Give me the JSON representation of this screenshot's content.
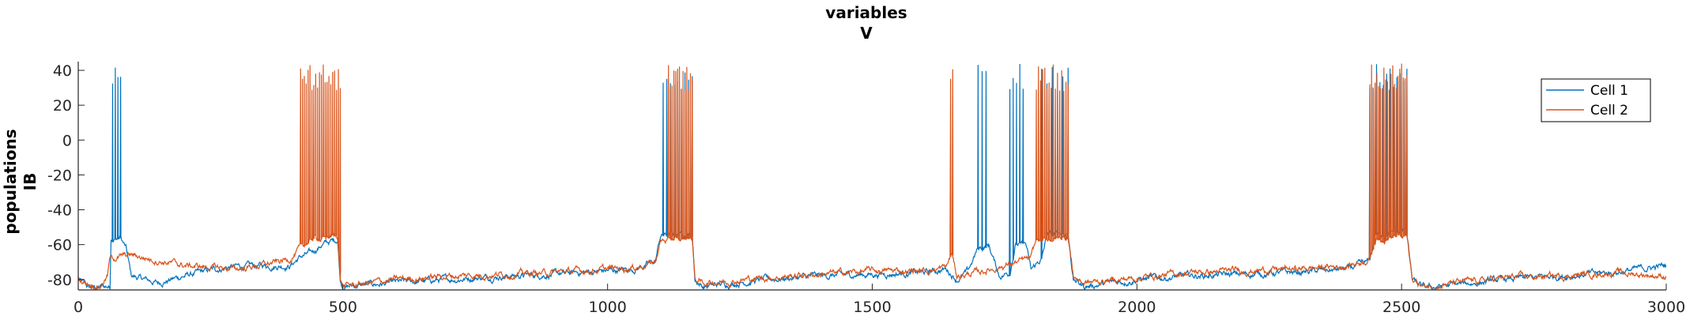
{
  "chart_data": {
    "type": "line",
    "title_line1": "variables",
    "title_line2": "V",
    "ylabel_line1": "populations",
    "ylabel_line2": "IB",
    "xlim": [
      0,
      3000
    ],
    "ylim": [
      -86,
      45
    ],
    "x_ticks": [
      0,
      500,
      1000,
      1500,
      2000,
      2500,
      3000
    ],
    "y_ticks": [
      -80,
      -60,
      -40,
      -20,
      0,
      20,
      40
    ],
    "legend_position": "top-right",
    "grid": false,
    "series": [
      {
        "name": "Cell 1",
        "color": "#0072BD",
        "baseline": [
          [
            0,
            -80
          ],
          [
            20,
            -85
          ],
          [
            60,
            -84
          ],
          [
            62,
            -56
          ],
          [
            80,
            -56
          ],
          [
            90,
            -62
          ],
          [
            100,
            -78
          ],
          [
            150,
            -82
          ],
          [
            200,
            -78
          ],
          [
            280,
            -73
          ],
          [
            350,
            -72
          ],
          [
            400,
            -72
          ],
          [
            420,
            -67
          ],
          [
            440,
            -65
          ],
          [
            460,
            -60
          ],
          [
            490,
            -57
          ],
          [
            495,
            -80
          ],
          [
            500,
            -84
          ],
          [
            600,
            -82
          ],
          [
            700,
            -80
          ],
          [
            800,
            -78
          ],
          [
            900,
            -77
          ],
          [
            1000,
            -75
          ],
          [
            1050,
            -74
          ],
          [
            1090,
            -70
          ],
          [
            1100,
            -55
          ],
          [
            1160,
            -54
          ],
          [
            1165,
            -80
          ],
          [
            1180,
            -84
          ],
          [
            1300,
            -80
          ],
          [
            1400,
            -78
          ],
          [
            1500,
            -77
          ],
          [
            1600,
            -76
          ],
          [
            1640,
            -74
          ],
          [
            1660,
            -80
          ],
          [
            1680,
            -76
          ],
          [
            1700,
            -62
          ],
          [
            1720,
            -60
          ],
          [
            1740,
            -78
          ],
          [
            1760,
            -76
          ],
          [
            1770,
            -60
          ],
          [
            1790,
            -60
          ],
          [
            1800,
            -75
          ],
          [
            1820,
            -68
          ],
          [
            1830,
            -55
          ],
          [
            1870,
            -53
          ],
          [
            1880,
            -80
          ],
          [
            1900,
            -84
          ],
          [
            2000,
            -80
          ],
          [
            2100,
            -78
          ],
          [
            2200,
            -77
          ],
          [
            2300,
            -76
          ],
          [
            2400,
            -74
          ],
          [
            2440,
            -70
          ],
          [
            2450,
            -54
          ],
          [
            2510,
            -53
          ],
          [
            2520,
            -80
          ],
          [
            2540,
            -85
          ],
          [
            2700,
            -80
          ],
          [
            2800,
            -78
          ],
          [
            2900,
            -76
          ],
          [
            3000,
            -72
          ]
        ],
        "spike_bursts": [
          [
            65,
            80,
            4
          ],
          [
            1105,
            1160,
            9
          ],
          [
            1700,
            1715,
            3
          ],
          [
            1760,
            1785,
            5
          ],
          [
            1820,
            1870,
            6
          ],
          [
            2440,
            2510,
            12
          ]
        ]
      },
      {
        "name": "Cell 2",
        "color": "#D95319",
        "baseline": [
          [
            0,
            -80
          ],
          [
            40,
            -84
          ],
          [
            55,
            -78
          ],
          [
            60,
            -68
          ],
          [
            100,
            -66
          ],
          [
            200,
            -72
          ],
          [
            300,
            -74
          ],
          [
            380,
            -70
          ],
          [
            400,
            -68
          ],
          [
            420,
            -62
          ],
          [
            440,
            -57
          ],
          [
            490,
            -55
          ],
          [
            495,
            -80
          ],
          [
            500,
            -84
          ],
          [
            600,
            -80
          ],
          [
            700,
            -78
          ],
          [
            800,
            -77
          ],
          [
            900,
            -76
          ],
          [
            1000,
            -74
          ],
          [
            1050,
            -73
          ],
          [
            1090,
            -70
          ],
          [
            1100,
            -58
          ],
          [
            1160,
            -56
          ],
          [
            1165,
            -80
          ],
          [
            1180,
            -82
          ],
          [
            1300,
            -79
          ],
          [
            1400,
            -77
          ],
          [
            1500,
            -75
          ],
          [
            1600,
            -75
          ],
          [
            1640,
            -73
          ],
          [
            1650,
            -65
          ],
          [
            1660,
            -78
          ],
          [
            1700,
            -76
          ],
          [
            1750,
            -72
          ],
          [
            1800,
            -68
          ],
          [
            1810,
            -58
          ],
          [
            1870,
            -56
          ],
          [
            1880,
            -78
          ],
          [
            1900,
            -82
          ],
          [
            2000,
            -79
          ],
          [
            2100,
            -76
          ],
          [
            2200,
            -75
          ],
          [
            2300,
            -74
          ],
          [
            2400,
            -72
          ],
          [
            2440,
            -68
          ],
          [
            2450,
            -57
          ],
          [
            2510,
            -55
          ],
          [
            2520,
            -80
          ],
          [
            2540,
            -84
          ],
          [
            2700,
            -79
          ],
          [
            2800,
            -78
          ],
          [
            2900,
            -76
          ],
          [
            3000,
            -78
          ]
        ],
        "spike_bursts": [
          [
            420,
            495,
            22
          ],
          [
            1115,
            1160,
            14
          ],
          [
            1648,
            1652,
            2
          ],
          [
            1810,
            1870,
            16
          ],
          [
            2440,
            2510,
            22
          ]
        ]
      }
    ]
  }
}
